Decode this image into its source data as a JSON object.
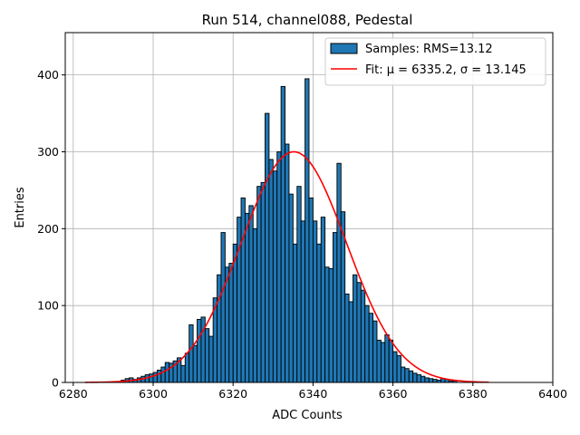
{
  "chart_data": {
    "type": "bar",
    "title": "Run 514, channel088, Pedestal",
    "xlabel": "ADC Counts",
    "ylabel": "Entries",
    "xlim": [
      6278,
      6400
    ],
    "ylim": [
      0,
      455
    ],
    "xticks": [
      "6280",
      "6300",
      "6320",
      "6340",
      "6360",
      "6380",
      "6400"
    ],
    "yticks": [
      "0",
      "100",
      "200",
      "300",
      "400"
    ],
    "grid": true,
    "legend_placement": "top-right",
    "bar_color": "#1f77b4",
    "fit_color": "#ff0000",
    "bin_width": 1,
    "histogram": {
      "name": "Samples: RMS=13.12",
      "bin_starts": [
        6292,
        6293,
        6294,
        6295,
        6296,
        6297,
        6298,
        6299,
        6300,
        6301,
        6302,
        6303,
        6304,
        6305,
        6306,
        6307,
        6308,
        6309,
        6310,
        6311,
        6312,
        6313,
        6314,
        6315,
        6316,
        6317,
        6318,
        6319,
        6320,
        6321,
        6322,
        6323,
        6324,
        6325,
        6326,
        6327,
        6328,
        6329,
        6330,
        6331,
        6332,
        6333,
        6334,
        6335,
        6336,
        6337,
        6338,
        6339,
        6340,
        6341,
        6342,
        6343,
        6344,
        6345,
        6346,
        6347,
        6348,
        6349,
        6350,
        6351,
        6352,
        6353,
        6354,
        6355,
        6356,
        6357,
        6358,
        6359,
        6360,
        6361,
        6362,
        6363,
        6364,
        6365,
        6366,
        6367,
        6368,
        6369,
        6370,
        6371,
        6372,
        6373,
        6374,
        6375
      ],
      "values": [
        3,
        5,
        6,
        4,
        6,
        8,
        10,
        11,
        13,
        16,
        20,
        26,
        25,
        28,
        32,
        22,
        38,
        75,
        48,
        82,
        85,
        70,
        60,
        110,
        140,
        195,
        150,
        155,
        180,
        215,
        240,
        220,
        230,
        200,
        255,
        260,
        350,
        290,
        275,
        300,
        385,
        310,
        245,
        180,
        255,
        210,
        395,
        240,
        210,
        180,
        215,
        150,
        148,
        195,
        285,
        222,
        115,
        105,
        140,
        130,
        120,
        100,
        90,
        80,
        55,
        52,
        62,
        55,
        40,
        35,
        20,
        18,
        15,
        12,
        10,
        8,
        6,
        5,
        4,
        3,
        5,
        4,
        2,
        2
      ]
    },
    "fit": {
      "name": "Fit: μ = 6335.2, σ = 13.145",
      "mu": 6335.2,
      "sigma": 13.145,
      "amplitude": 300,
      "x_range": [
        6283,
        6384
      ]
    }
  }
}
